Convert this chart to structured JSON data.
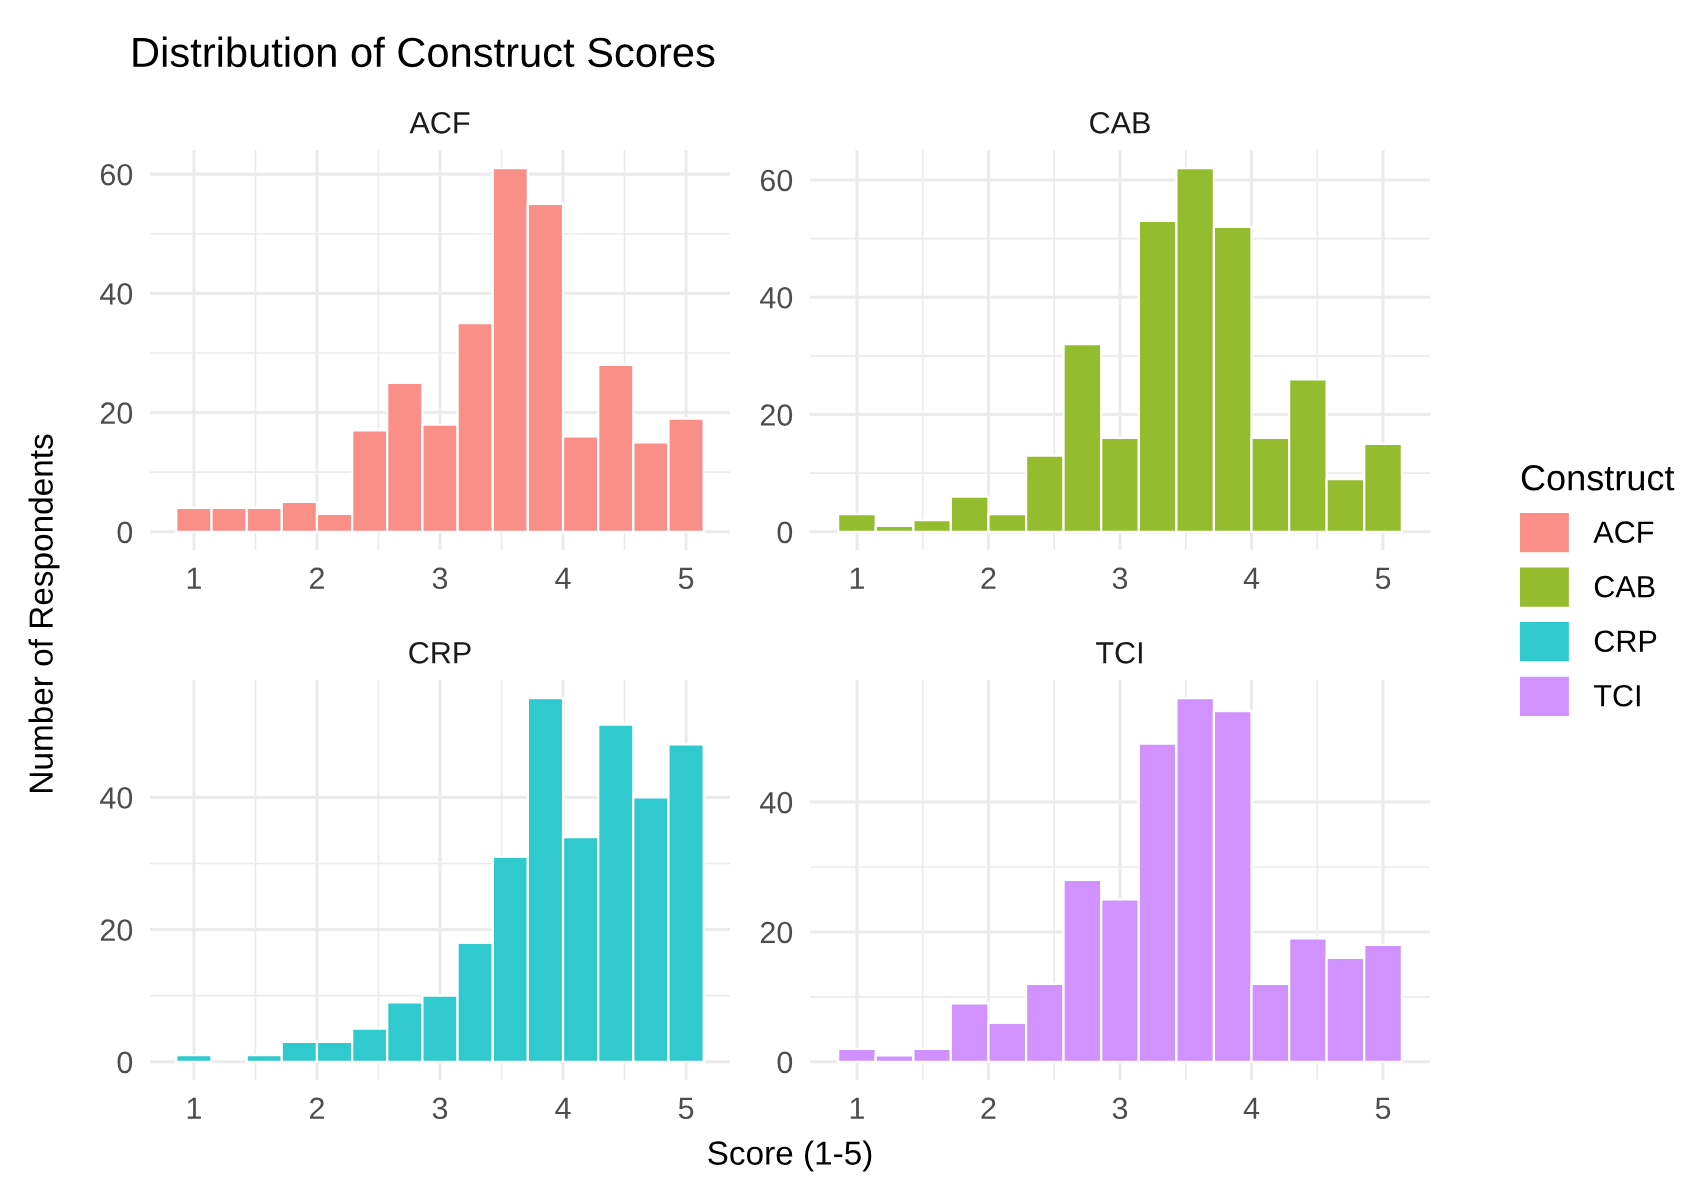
{
  "chart_data": [
    {
      "type": "histogram",
      "title": "Distribution of Construct Scores",
      "subtitle": "ACF",
      "xlabel": "Score (1-5)",
      "ylabel": "Number of Respondents",
      "legend_title": "Construct",
      "legend": "right",
      "grid": true,
      "bins": [
        0.857,
        1.143,
        1.429,
        1.714,
        2.0,
        2.286,
        2.571,
        2.857,
        3.143,
        3.429,
        3.714,
        4.0,
        4.286,
        4.571,
        4.857,
        5.143
      ],
      "series": [
        {
          "name": "ACF",
          "color": "#f98f87",
          "values": [
            4,
            4,
            4,
            5,
            3,
            17,
            25,
            18,
            35,
            61,
            55,
            16,
            28,
            15,
            19
          ]
        }
      ],
      "xlim": [
        0.643,
        5.357
      ],
      "xticks": [
        1,
        2,
        3,
        4,
        5
      ],
      "ylim": [
        -3.05,
        64.05
      ],
      "yticks": [
        0,
        20,
        40,
        60
      ]
    },
    {
      "type": "histogram",
      "subtitle": "CAB",
      "grid": true,
      "bins": [
        0.857,
        1.143,
        1.429,
        1.714,
        2.0,
        2.286,
        2.571,
        2.857,
        3.143,
        3.429,
        3.714,
        4.0,
        4.286,
        4.571,
        4.857,
        5.143
      ],
      "series": [
        {
          "name": "CAB",
          "color": "#93bc2f",
          "values": [
            3,
            1,
            2,
            6,
            3,
            13,
            32,
            16,
            53,
            62,
            52,
            16,
            26,
            9,
            15
          ]
        }
      ],
      "xlim": [
        0.643,
        5.357
      ],
      "xticks": [
        1,
        2,
        3,
        4,
        5
      ],
      "ylim": [
        -3.1,
        65.1
      ],
      "yticks": [
        0,
        20,
        40,
        60
      ]
    },
    {
      "type": "histogram",
      "subtitle": "CRP",
      "grid": true,
      "bins": [
        0.857,
        1.143,
        1.429,
        1.714,
        2.0,
        2.286,
        2.571,
        2.857,
        3.143,
        3.429,
        3.714,
        4.0,
        4.286,
        4.571,
        4.857,
        5.143
      ],
      "series": [
        {
          "name": "CRP",
          "color": "#30c9cd",
          "values": [
            1,
            0,
            1,
            3,
            3,
            5,
            9,
            10,
            18,
            31,
            55,
            34,
            51,
            40,
            48
          ]
        }
      ],
      "xlim": [
        0.643,
        5.357
      ],
      "xticks": [
        1,
        2,
        3,
        4,
        5
      ],
      "ylim": [
        -2.75,
        57.75
      ],
      "yticks": [
        0,
        20,
        40
      ]
    },
    {
      "type": "histogram",
      "subtitle": "TCI",
      "grid": true,
      "bins": [
        0.857,
        1.143,
        1.429,
        1.714,
        2.0,
        2.286,
        2.571,
        2.857,
        3.143,
        3.429,
        3.714,
        4.0,
        4.286,
        4.571,
        4.857,
        5.143
      ],
      "series": [
        {
          "name": "TCI",
          "color": "#d192ff",
          "values": [
            2,
            1,
            2,
            9,
            6,
            12,
            28,
            25,
            49,
            56,
            54,
            12,
            19,
            16,
            18
          ]
        }
      ],
      "xlim": [
        0.643,
        5.357
      ],
      "xticks": [
        1,
        2,
        3,
        4,
        5
      ],
      "ylim": [
        -2.8,
        58.8
      ],
      "yticks": [
        0,
        20,
        40
      ]
    }
  ]
}
